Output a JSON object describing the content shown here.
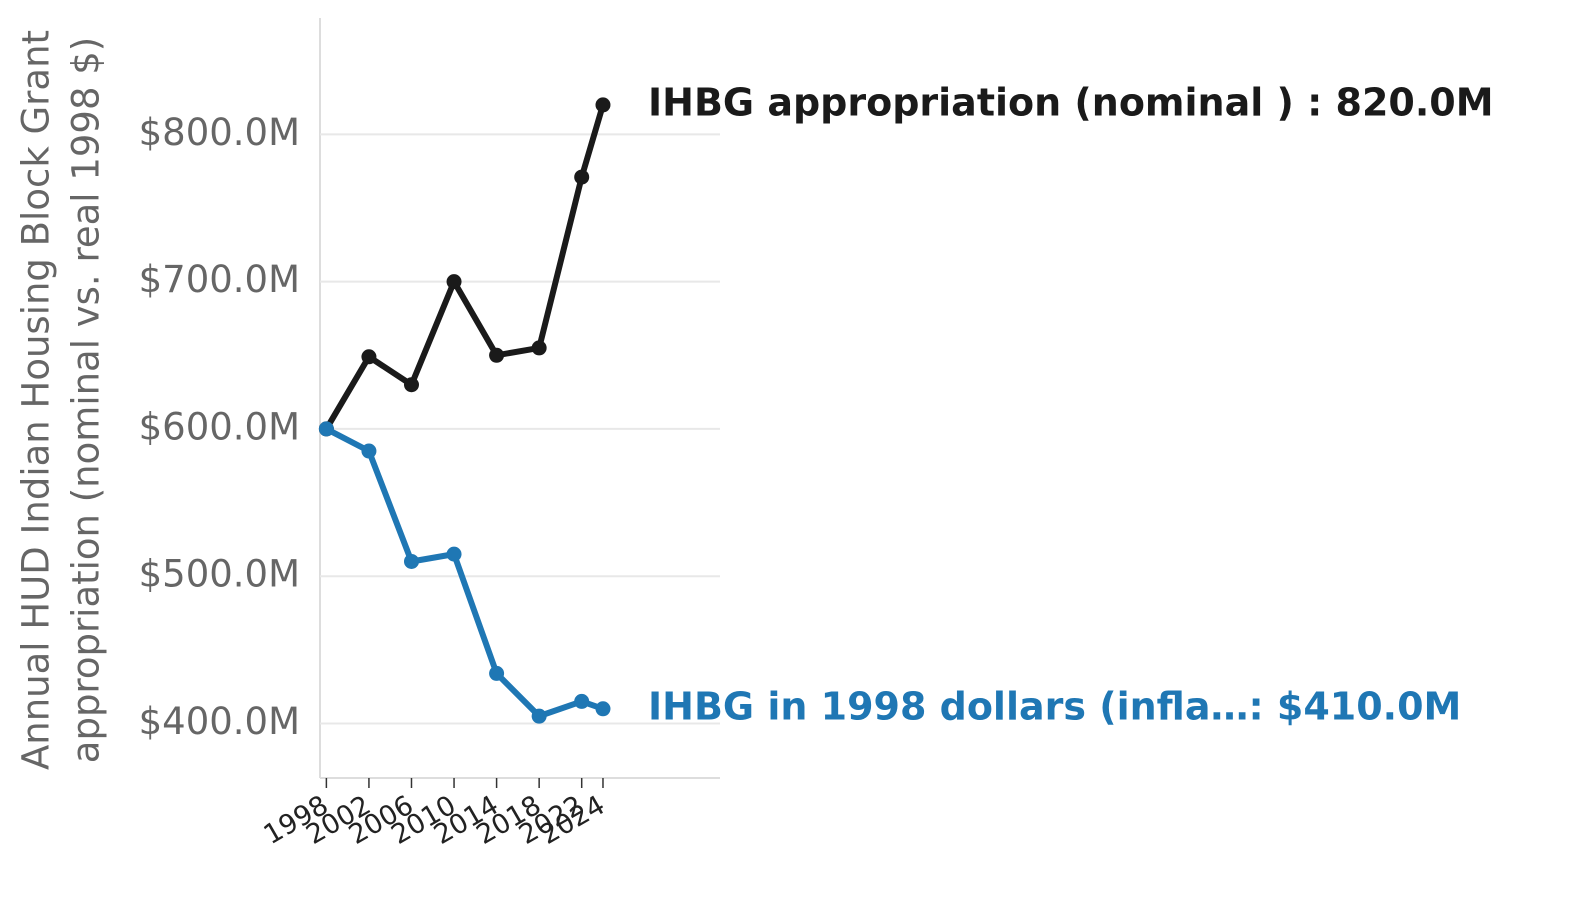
{
  "chart_data": {
    "type": "line",
    "ylabel": [
      "Annual HUD Indian Housing Block Grant",
      "appropriation (nominal vs. real 1998 $)"
    ],
    "x": [
      1998,
      2002,
      2006,
      2010,
      2014,
      2018,
      2022,
      2024
    ],
    "series": [
      {
        "name": "IHBG appropriation (nominal )",
        "color": "#1a1a1a",
        "values": [
          600,
          649,
          630,
          700,
          650,
          655,
          771,
          820
        ],
        "end_label": "IHBG appropriation (nominal ) : 820.0M"
      },
      {
        "name": "IHBG in 1998 dollars (infla…",
        "color": "#1f77b4",
        "values": [
          600,
          585,
          510,
          515,
          434,
          405,
          415,
          410
        ],
        "end_label": "IHBG in 1998 dollars (infla…: $410.0M"
      }
    ],
    "xlim": [
      1997.4,
      2035
    ],
    "xticks": [
      1998,
      2002,
      2006,
      2010,
      2014,
      2018,
      2022,
      2024
    ],
    "ylim": [
      363,
      879
    ],
    "yticks": [
      {
        "value": 400,
        "label": "$400.0M"
      },
      {
        "value": 500,
        "label": "$500.0M"
      },
      {
        "value": 600,
        "label": "$600.0M"
      },
      {
        "value": 700,
        "label": "$700.0M"
      },
      {
        "value": 800,
        "label": "$800.0M"
      }
    ],
    "grid": true
  }
}
